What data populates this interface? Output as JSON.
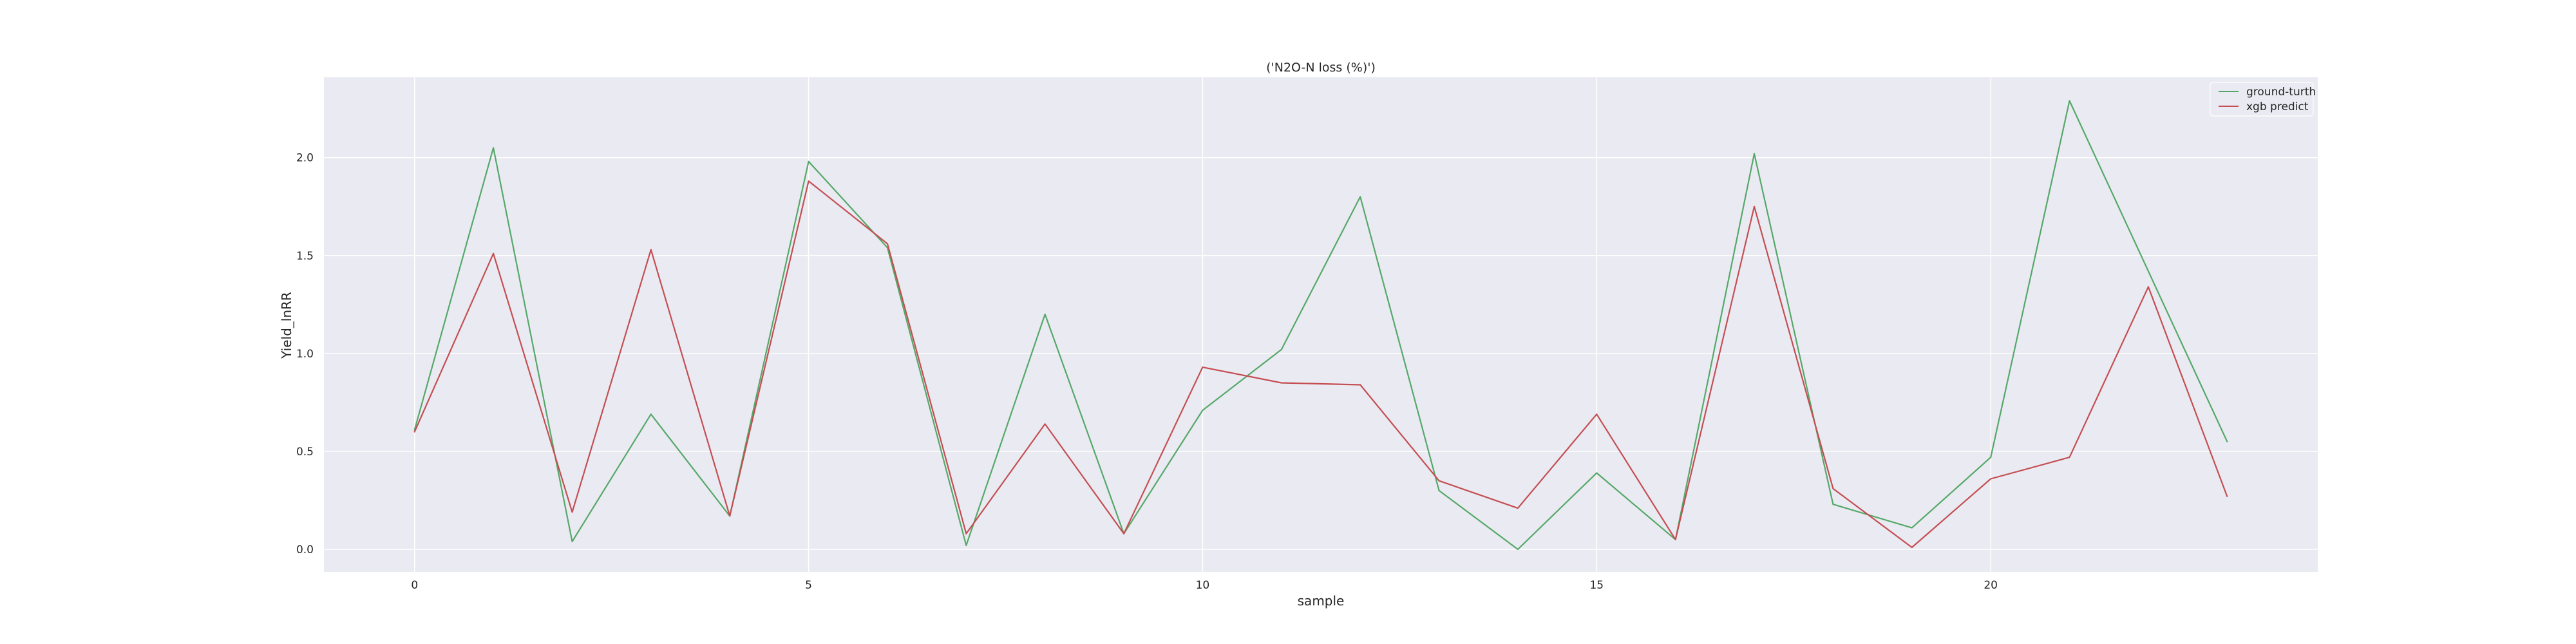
{
  "chart_data": {
    "type": "line",
    "title": "('N2O-N loss (%)')",
    "xlabel": "sample",
    "ylabel": "Yield_lnRR",
    "x": [
      0,
      1,
      2,
      3,
      4,
      5,
      6,
      7,
      8,
      9,
      10,
      11,
      12,
      13,
      14,
      15,
      16,
      17,
      18,
      19,
      20,
      21,
      22,
      23
    ],
    "xlim": [
      -1.15,
      24.15
    ],
    "ylim": [
      -0.115,
      2.41
    ],
    "xticks": [
      0,
      5,
      10,
      15,
      20
    ],
    "yticks": [
      0.0,
      0.5,
      1.0,
      1.5,
      2.0
    ],
    "xtick_labels": [
      "0",
      "5",
      "10",
      "15",
      "20"
    ],
    "ytick_labels": [
      "0.0",
      "0.5",
      "1.0",
      "1.5",
      "2.0"
    ],
    "grid": true,
    "legend_position": "top-right",
    "series": [
      {
        "name": "ground-turth",
        "color": "#55a868",
        "values": [
          0.61,
          2.05,
          0.04,
          0.69,
          0.17,
          1.98,
          1.54,
          0.02,
          1.2,
          0.08,
          0.71,
          1.02,
          1.8,
          0.3,
          0.0,
          0.39,
          0.05,
          2.02,
          0.23,
          0.11,
          0.47,
          2.29,
          1.42,
          0.55
        ]
      },
      {
        "name": "xgb predict",
        "color": "#c44e52",
        "values": [
          0.6,
          1.51,
          0.19,
          1.53,
          0.17,
          1.88,
          1.56,
          0.08,
          0.64,
          0.08,
          0.93,
          0.85,
          0.84,
          0.35,
          0.21,
          0.69,
          0.05,
          1.75,
          0.31,
          0.01,
          0.36,
          0.47,
          1.34,
          0.27
        ]
      }
    ]
  }
}
